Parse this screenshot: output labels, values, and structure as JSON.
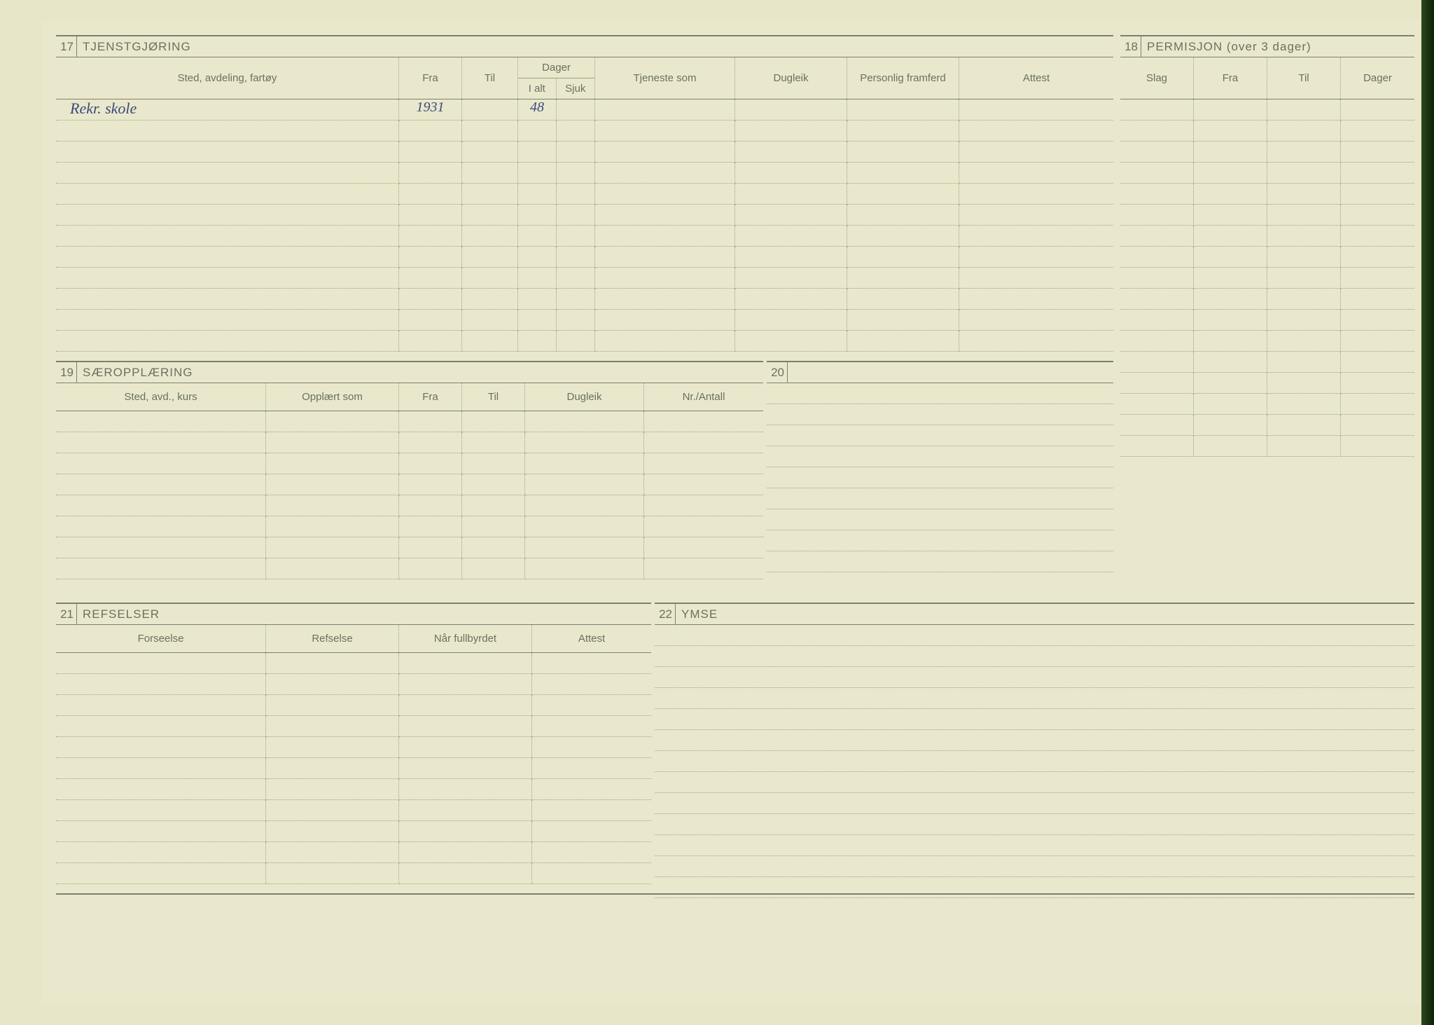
{
  "colors": {
    "paper": "#eae8cc",
    "line_dark": "#7a8070",
    "line_dotted": "#9aa088",
    "text": "#6a7060",
    "ink": "#3a4a7a",
    "binding": "#0d2006"
  },
  "section17": {
    "number": "17",
    "title": "TJENSTGJØRING",
    "headers": {
      "sted": "Sted, avdeling, fartøy",
      "fra": "Fra",
      "til": "Til",
      "dager": "Dager",
      "ialt": "I alt",
      "sjuk": "Sjuk",
      "tjeneste": "Tjeneste som",
      "dugleik": "Dugleik",
      "framferd": "Personlig framferd",
      "attest": "Attest"
    },
    "rows": [
      {
        "sted": "Rekr. skole",
        "fra": "1931",
        "til": "",
        "ialt": "48",
        "sjuk": "",
        "tjeneste": "",
        "dugleik": "",
        "framferd": "",
        "attest": ""
      },
      {
        "sted": "",
        "fra": "",
        "til": "",
        "ialt": "",
        "sjuk": "",
        "tjeneste": "",
        "dugleik": "",
        "framferd": "",
        "attest": ""
      },
      {
        "sted": "",
        "fra": "",
        "til": "",
        "ialt": "",
        "sjuk": "",
        "tjeneste": "",
        "dugleik": "",
        "framferd": "",
        "attest": ""
      },
      {
        "sted": "",
        "fra": "",
        "til": "",
        "ialt": "",
        "sjuk": "",
        "tjeneste": "",
        "dugleik": "",
        "framferd": "",
        "attest": ""
      },
      {
        "sted": "",
        "fra": "",
        "til": "",
        "ialt": "",
        "sjuk": "",
        "tjeneste": "",
        "dugleik": "",
        "framferd": "",
        "attest": ""
      },
      {
        "sted": "",
        "fra": "",
        "til": "",
        "ialt": "",
        "sjuk": "",
        "tjeneste": "",
        "dugleik": "",
        "framferd": "",
        "attest": ""
      },
      {
        "sted": "",
        "fra": "",
        "til": "",
        "ialt": "",
        "sjuk": "",
        "tjeneste": "",
        "dugleik": "",
        "framferd": "",
        "attest": ""
      },
      {
        "sted": "",
        "fra": "",
        "til": "",
        "ialt": "",
        "sjuk": "",
        "tjeneste": "",
        "dugleik": "",
        "framferd": "",
        "attest": ""
      },
      {
        "sted": "",
        "fra": "",
        "til": "",
        "ialt": "",
        "sjuk": "",
        "tjeneste": "",
        "dugleik": "",
        "framferd": "",
        "attest": ""
      },
      {
        "sted": "",
        "fra": "",
        "til": "",
        "ialt": "",
        "sjuk": "",
        "tjeneste": "",
        "dugleik": "",
        "framferd": "",
        "attest": ""
      },
      {
        "sted": "",
        "fra": "",
        "til": "",
        "ialt": "",
        "sjuk": "",
        "tjeneste": "",
        "dugleik": "",
        "framferd": "",
        "attest": ""
      },
      {
        "sted": "",
        "fra": "",
        "til": "",
        "ialt": "",
        "sjuk": "",
        "tjeneste": "",
        "dugleik": "",
        "framferd": "",
        "attest": ""
      }
    ]
  },
  "section18": {
    "number": "18",
    "title": "PERMISJON (over 3 dager)",
    "headers": {
      "slag": "Slag",
      "fra": "Fra",
      "til": "Til",
      "dager": "Dager"
    },
    "row_count": 17
  },
  "section19": {
    "number": "19",
    "title": "SÆROPPLÆRING",
    "headers": {
      "sted": "Sted, avd., kurs",
      "opplart": "Opplært som",
      "fra": "Fra",
      "til": "Til",
      "dugleik": "Dugleik",
      "nr": "Nr./Antall"
    },
    "row_count": 8
  },
  "section20": {
    "number": "20",
    "title": "",
    "row_count": 9
  },
  "section21": {
    "number": "21",
    "title": "REFSELSER",
    "headers": {
      "forseelse": "Forseelse",
      "refselse": "Refselse",
      "nar": "Når fullbyrdet",
      "attest": "Attest"
    },
    "row_count": 11
  },
  "section22": {
    "number": "22",
    "title": "YMSE",
    "row_count": 13
  }
}
